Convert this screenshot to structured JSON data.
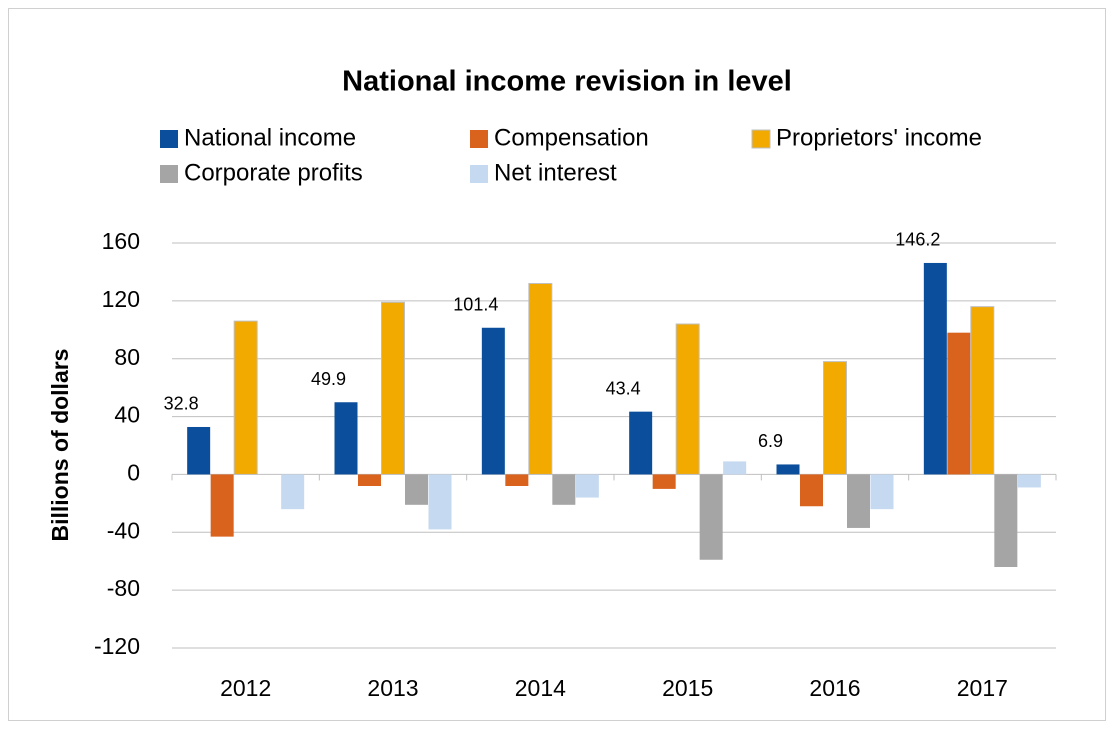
{
  "chart_data": {
    "type": "bar",
    "title": "National income revision in level",
    "y_label": "Billions of dollars",
    "categories": [
      "2012",
      "2013",
      "2014",
      "2015",
      "2016",
      "2017"
    ],
    "series": [
      {
        "name": "National income",
        "color": "#0b4f9c",
        "values": [
          32.8,
          49.9,
          101.4,
          43.4,
          6.9,
          146.2
        ],
        "data_labels": true
      },
      {
        "name": "Compensation",
        "color": "#d9621c",
        "values": [
          -43,
          -8,
          -8,
          -10,
          -22,
          98
        ]
      },
      {
        "name": "Proprietors' income",
        "color": "#f2a900",
        "values": [
          106,
          119,
          132,
          104,
          78,
          116
        ]
      },
      {
        "name": "Corporate profits",
        "color": "#a5a5a5",
        "values": [
          0,
          -21,
          -21,
          -59,
          -37,
          -64
        ]
      },
      {
        "name": "Net interest",
        "color": "#c5d9f1",
        "values": [
          -24,
          -38,
          -16,
          9,
          -24,
          -9
        ]
      }
    ],
    "ylim": [
      -120,
      160
    ],
    "yticks": [
      -120,
      -80,
      -40,
      0,
      40,
      80,
      120,
      160
    ],
    "grid": true,
    "legend": "top"
  }
}
